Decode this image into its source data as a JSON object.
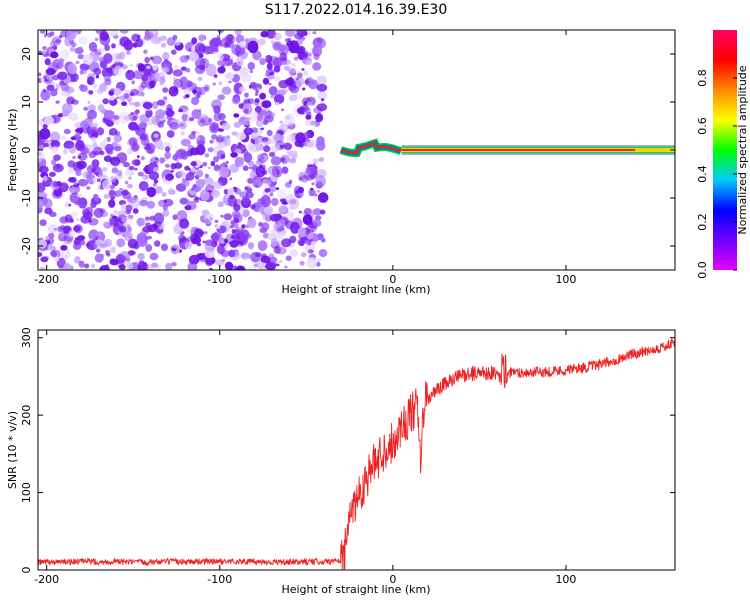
{
  "title": "S117.2022.014.16.39.E30",
  "colorbar": {
    "label": "Normalized spectral amplitude",
    "ticks": [
      "0.0",
      "0.2",
      "0.4",
      "0.6",
      "0.8"
    ],
    "stops": [
      "#e600ff",
      "#7000ff",
      "#0000ff",
      "#00ccff",
      "#00ff00",
      "#ffff00",
      "#ff8800",
      "#ff0000",
      "#ff0066"
    ]
  },
  "chart_data": [
    {
      "type": "heatmap",
      "xlabel": "Height of straight line (km)",
      "ylabel": "Frequency (Hz)",
      "xlim": [
        -205,
        163
      ],
      "ylim": [
        -25,
        25
      ],
      "xticks": [
        "-200",
        "-100",
        "0",
        "100"
      ],
      "yticks": [
        "-20",
        "-10",
        "0",
        "10",
        "20"
      ],
      "noise_region": [
        -205,
        -40
      ],
      "signal_line": {
        "from": -30,
        "to": 163,
        "frequency": 0
      },
      "colorscale_range": [
        0,
        1
      ]
    },
    {
      "type": "line",
      "xlabel": "Height of straight line (km)",
      "ylabel": "SNR (10 * v/v)",
      "xlim": [
        -205,
        163
      ],
      "ylim": [
        0,
        310
      ],
      "xticks": [
        "-200",
        "-100",
        "0",
        "100"
      ],
      "yticks": [
        "0",
        "100",
        "200",
        "300"
      ],
      "color": "#ee2222",
      "series": [
        {
          "x": [
            -205,
            -180,
            -150,
            -120,
            -90,
            -60,
            -40,
            -30,
            -27,
            -24,
            -20,
            -15,
            -10,
            -5,
            0,
            5,
            10,
            14,
            16,
            18,
            22,
            30,
            40,
            50,
            60,
            64,
            68,
            80,
            100,
            120,
            140,
            160,
            163
          ],
          "values": [
            10,
            11,
            10,
            11,
            11,
            10,
            11,
            12,
            30,
            80,
            95,
            120,
            140,
            155,
            165,
            185,
            200,
            210,
            140,
            215,
            225,
            240,
            252,
            255,
            255,
            240,
            255,
            255,
            258,
            265,
            280,
            290,
            295
          ]
        }
      ]
    }
  ]
}
